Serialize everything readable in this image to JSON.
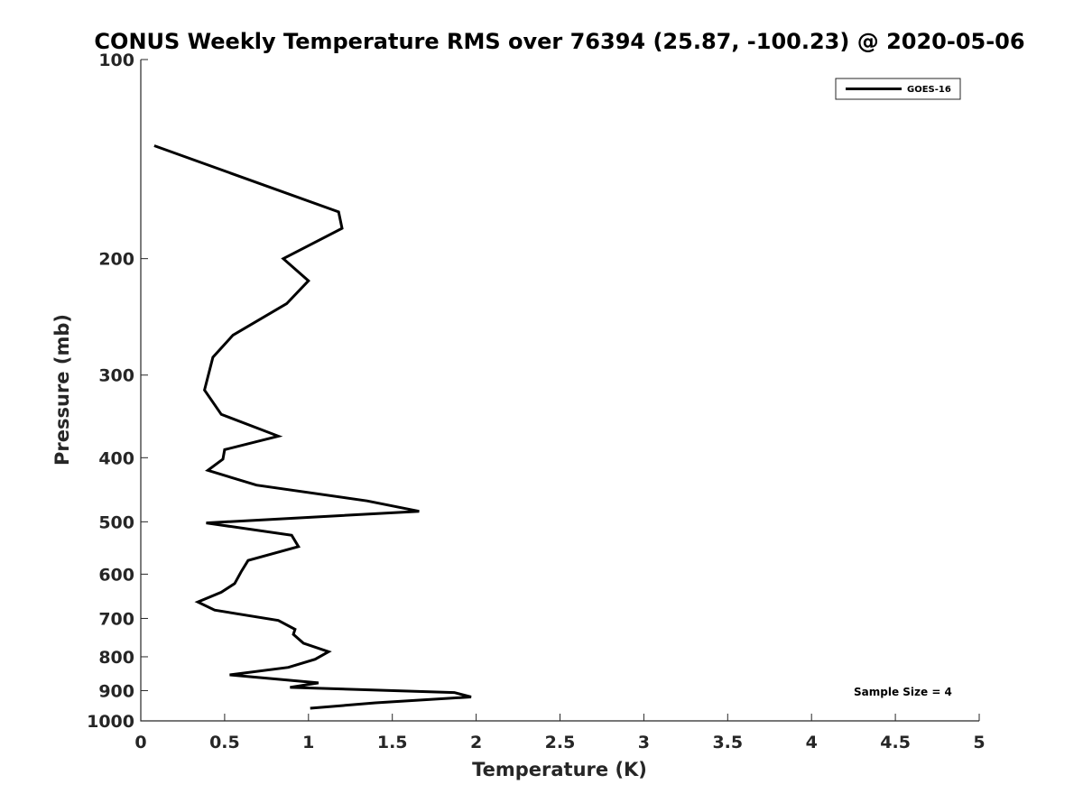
{
  "chart_data": {
    "type": "line",
    "title": "CONUS Weekly Temperature RMS over 76394 (25.87, -100.23) @ 2020-05-06",
    "xlabel": "Temperature (K)",
    "ylabel": "Pressure (mb)",
    "xlim": [
      0,
      5
    ],
    "ylim": [
      1000,
      100
    ],
    "yscale": "log",
    "y_reversed": true,
    "xticks": [
      0,
      0.5,
      1,
      1.5,
      2,
      2.5,
      3,
      3.5,
      4,
      4.5,
      5
    ],
    "xtick_labels": [
      "0",
      "0.5",
      "1",
      "1.5",
      "2",
      "2.5",
      "3",
      "3.5",
      "4",
      "4.5",
      "5"
    ],
    "yticks": [
      100,
      200,
      300,
      400,
      500,
      600,
      700,
      800,
      900,
      1000
    ],
    "ytick_labels": [
      "100",
      "200",
      "300",
      "400",
      "500",
      "600",
      "700",
      "800",
      "900",
      "1000"
    ],
    "grid": false,
    "legend_position": "top-right",
    "series": [
      {
        "name": "GOES-16",
        "color": "#000000",
        "points": [
          {
            "x": 0.08,
            "y": 135
          },
          {
            "x": 1.18,
            "y": 170
          },
          {
            "x": 1.2,
            "y": 180
          },
          {
            "x": 0.85,
            "y": 200
          },
          {
            "x": 1.0,
            "y": 216
          },
          {
            "x": 0.87,
            "y": 234
          },
          {
            "x": 0.55,
            "y": 261
          },
          {
            "x": 0.43,
            "y": 282
          },
          {
            "x": 0.38,
            "y": 316
          },
          {
            "x": 0.48,
            "y": 344
          },
          {
            "x": 0.82,
            "y": 371
          },
          {
            "x": 0.5,
            "y": 389
          },
          {
            "x": 0.49,
            "y": 402
          },
          {
            "x": 0.4,
            "y": 418
          },
          {
            "x": 0.69,
            "y": 440
          },
          {
            "x": 1.35,
            "y": 465
          },
          {
            "x": 1.66,
            "y": 482
          },
          {
            "x": 0.39,
            "y": 502
          },
          {
            "x": 0.9,
            "y": 524
          },
          {
            "x": 0.94,
            "y": 545
          },
          {
            "x": 0.64,
            "y": 572
          },
          {
            "x": 0.6,
            "y": 594
          },
          {
            "x": 0.56,
            "y": 620
          },
          {
            "x": 0.48,
            "y": 639
          },
          {
            "x": 0.34,
            "y": 661
          },
          {
            "x": 0.44,
            "y": 680
          },
          {
            "x": 0.82,
            "y": 705
          },
          {
            "x": 0.92,
            "y": 727
          },
          {
            "x": 0.91,
            "y": 740
          },
          {
            "x": 0.97,
            "y": 763
          },
          {
            "x": 1.12,
            "y": 786
          },
          {
            "x": 1.04,
            "y": 807
          },
          {
            "x": 0.88,
            "y": 830
          },
          {
            "x": 0.53,
            "y": 852
          },
          {
            "x": 1.06,
            "y": 876
          },
          {
            "x": 0.89,
            "y": 890
          },
          {
            "x": 1.87,
            "y": 906
          },
          {
            "x": 1.97,
            "y": 920
          },
          {
            "x": 1.4,
            "y": 939
          },
          {
            "x": 1.01,
            "y": 957
          }
        ]
      }
    ],
    "annotations": [
      "Sample Size = 4"
    ]
  }
}
